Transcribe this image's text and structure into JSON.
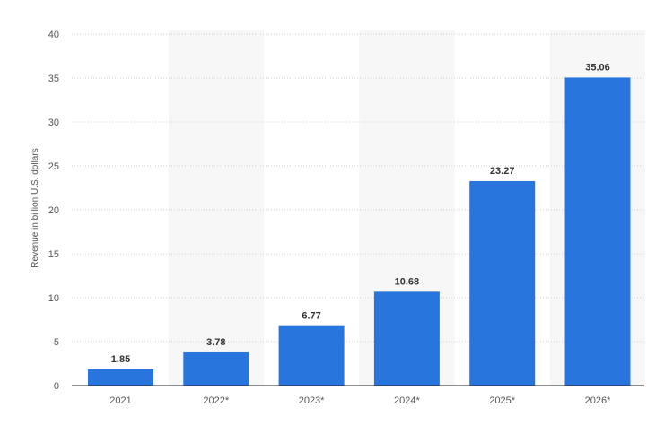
{
  "chart_data": {
    "type": "bar",
    "categories": [
      "2021",
      "2022*",
      "2023*",
      "2024*",
      "2025*",
      "2026*"
    ],
    "values": [
      1.85,
      3.78,
      6.77,
      10.68,
      23.27,
      35.06
    ],
    "value_labels": [
      "1.85",
      "3.78",
      "6.77",
      "10.68",
      "23.27",
      "35.06"
    ],
    "title": "",
    "xlabel": "",
    "ylabel": "Revenue in billion U.S. dollars",
    "ylim": [
      0,
      40
    ],
    "yticks": [
      0,
      5,
      10,
      15,
      20,
      25,
      30,
      35,
      40
    ],
    "ytick_labels": [
      "0",
      "5",
      "10",
      "15",
      "20",
      "25",
      "30",
      "35",
      "40"
    ],
    "grid": true,
    "bar_color": "#2876dd",
    "alternate_band_color": "#f7f7f7"
  }
}
